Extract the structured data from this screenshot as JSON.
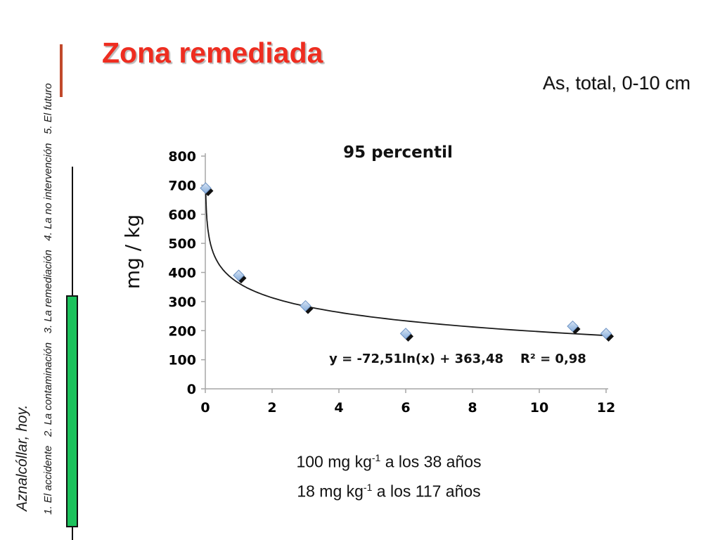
{
  "slide": {
    "title": "Zona remediada",
    "title_color": "#ee2d20",
    "subtitle": "As, total, 0-10 cm"
  },
  "sidebar": {
    "heading": "Aznalcóllar, hoy.",
    "items": [
      "1. El accidente",
      "2. La contaminación",
      "3. La remediación",
      "4. La no intervención",
      "5. El futuro"
    ],
    "bar_color": "#1cc25c",
    "accent_line_color": "#c1492b"
  },
  "chart_data": {
    "type": "scatter",
    "title": "95 percentil",
    "ylabel": "mg / kg",
    "xlabel": "",
    "xlim": [
      0,
      12
    ],
    "ylim": [
      0,
      800
    ],
    "x_ticks": [
      0,
      2,
      4,
      6,
      8,
      10,
      12
    ],
    "y_ticks": [
      0,
      100,
      200,
      300,
      400,
      500,
      600,
      700,
      800
    ],
    "grid": false,
    "legend": false,
    "points": [
      {
        "x": 0.01,
        "y": 690
      },
      {
        "x": 1,
        "y": 390
      },
      {
        "x": 3,
        "y": 285
      },
      {
        "x": 6,
        "y": 190
      },
      {
        "x": 11,
        "y": 215
      },
      {
        "x": 12,
        "y": 190
      }
    ],
    "trendline": {
      "type": "logarithmic",
      "a": -72.51,
      "b": 363.48,
      "equation": "y = -72,51ln(x) + 363,48",
      "r2_label": "R² = 0,98"
    },
    "marker_color": "#a9c5e6",
    "marker_shadow_color": "#111111",
    "axis_color": "#a6a6a6",
    "line_color": "#1a1a1a"
  },
  "annotations": {
    "line1": {
      "prefix": "100 mg kg",
      "sup": "-1",
      "suffix": " a los 38 años"
    },
    "line2": {
      "prefix": "18 mg kg",
      "sup": "-1",
      "suffix": " a los 117 años"
    }
  }
}
